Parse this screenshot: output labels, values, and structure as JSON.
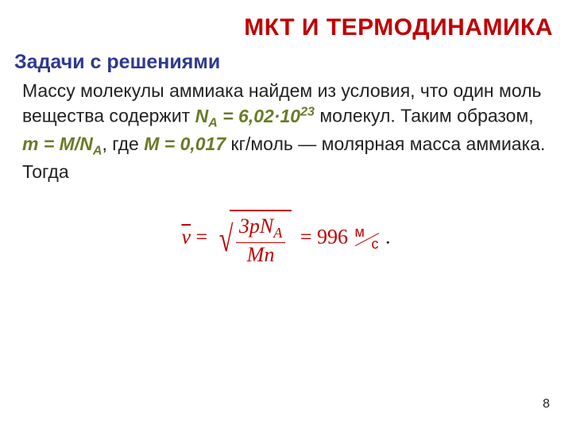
{
  "colors": {
    "title": "#c00000",
    "subtitle": "#2e3a8c",
    "highlight": "#6a7b28",
    "formula": "#c00000",
    "body": "#222222"
  },
  "fontsizes": {
    "title": 30,
    "subtitle": 25,
    "body": 23,
    "formula": 26,
    "pagenum": 16
  },
  "title": "МКТ И ТЕРМОДИНАМИКА",
  "subtitle": "Задачи с решениями",
  "para": {
    "t1": "Массу молекулы аммиака найдем из условия, что один моль вещества содержит ",
    "NA_label": "N",
    "NA_sub": "A",
    "NA_eq": " = 6,02·10",
    "NA_exp": "23",
    "t2": " молекул. Таким образом, ",
    "m_eq": "m = M/N",
    "m_sub": "A",
    "t3": ", где ",
    "M_eq": "M = 0,017",
    "t4": " кг/моль — молярная масса аммиака. Тогда"
  },
  "formula": {
    "lhs_var": "v",
    "eq1": " = ",
    "num_3p": "3p",
    "num_N": "N",
    "num_Nsub": "A",
    "den_M": "M",
    "den_n": "n",
    "eq2": " = 996 ",
    "unit_top": "м",
    "unit_bot": "с",
    "tail": " ."
  },
  "page": "8"
}
